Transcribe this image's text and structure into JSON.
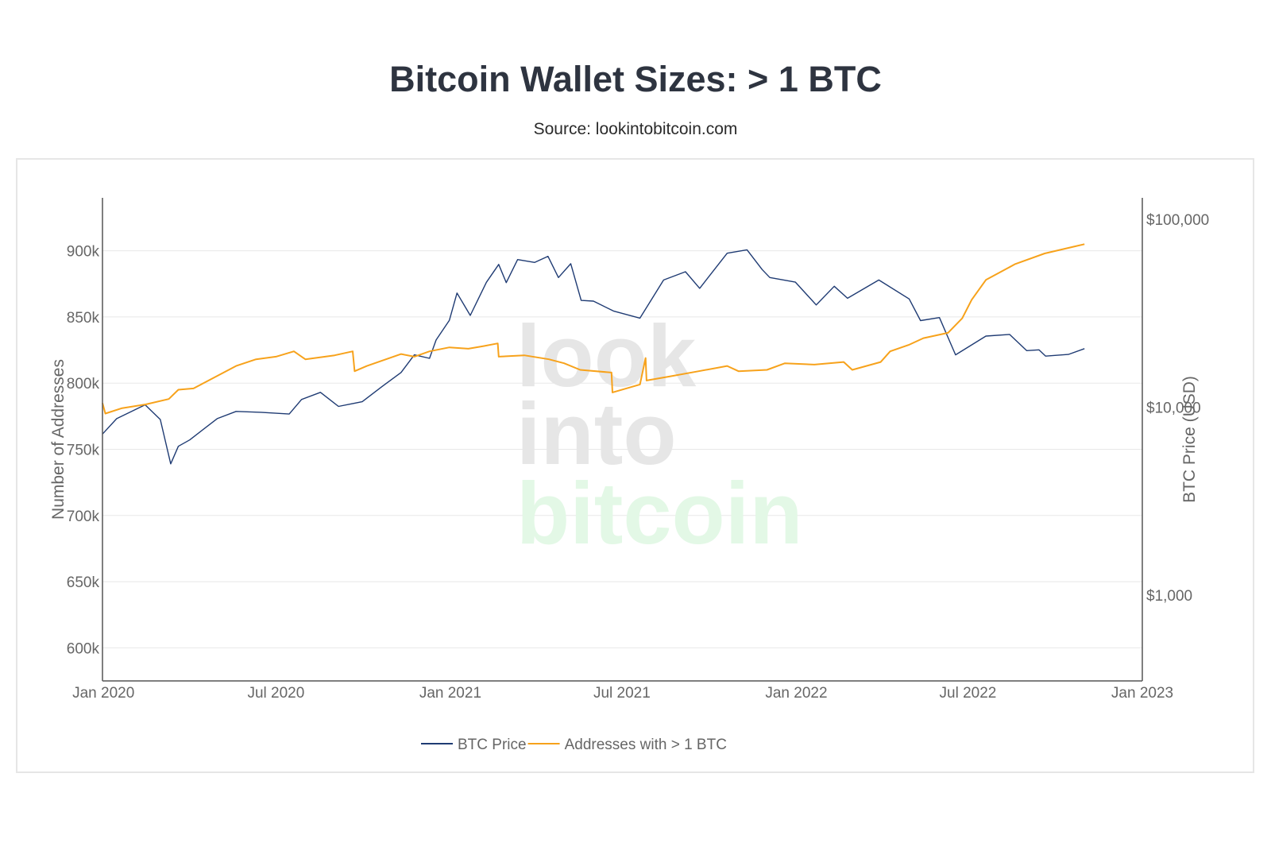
{
  "header": {
    "title": "Bitcoin Wallet Sizes: > 1 BTC",
    "subtitle": "Source: lookintobitcoin.com"
  },
  "watermark": {
    "line1": "look",
    "line2": "into",
    "line3": "bitcoin"
  },
  "colors": {
    "price": "#1f3b73",
    "addresses": "#f7a21b",
    "axis": "#555555",
    "grid": "#e8e8e8",
    "wm_gray": "#e6e6e6",
    "wm_green": "#e3f8e6"
  },
  "chart_data": {
    "type": "line",
    "title": "Bitcoin Wallet Sizes: > 1 BTC",
    "xlabel": "",
    "ylabel": "Number of Addresses",
    "y2label": "BTC Price (USD)",
    "xlim": [
      "2019-12-31",
      "2023-01-01"
    ],
    "ylim": [
      575000,
      940000
    ],
    "y2lim": [
      350,
      130000
    ],
    "y2_scale": "log",
    "x_ticks": [
      {
        "date": "2020-01-01",
        "label": "Jan 2020"
      },
      {
        "date": "2020-07-01",
        "label": "Jul 2020"
      },
      {
        "date": "2021-01-01",
        "label": "Jan 2021"
      },
      {
        "date": "2021-07-01",
        "label": "Jul 2021"
      },
      {
        "date": "2022-01-01",
        "label": "Jan 2022"
      },
      {
        "date": "2022-07-01",
        "label": "Jul 2022"
      },
      {
        "date": "2023-01-01",
        "label": "Jan 2023"
      }
    ],
    "y_ticks": [
      {
        "value": 600000,
        "label": "600k"
      },
      {
        "value": 650000,
        "label": "650k"
      },
      {
        "value": 700000,
        "label": "700k"
      },
      {
        "value": 750000,
        "label": "750k"
      },
      {
        "value": 800000,
        "label": "800k"
      },
      {
        "value": 850000,
        "label": "850k"
      },
      {
        "value": 900000,
        "label": "900k"
      }
    ],
    "y2_ticks": [
      {
        "value": 1000,
        "label": "$1,000"
      },
      {
        "value": 10000,
        "label": "$10,000"
      },
      {
        "value": 100000,
        "label": "$100,000"
      }
    ],
    "legend_position": "bottom-center",
    "grid": true,
    "series": [
      {
        "name": "BTC Price",
        "axis": "y2",
        "color": "#1f3b73",
        "points": [
          [
            "2019-12-31",
            7200
          ],
          [
            "2020-01-15",
            8700
          ],
          [
            "2020-02-14",
            10300
          ],
          [
            "2020-03-01",
            8600
          ],
          [
            "2020-03-12",
            5000
          ],
          [
            "2020-03-20",
            6200
          ],
          [
            "2020-04-01",
            6700
          ],
          [
            "2020-04-30",
            8700
          ],
          [
            "2020-05-20",
            9500
          ],
          [
            "2020-06-15",
            9400
          ],
          [
            "2020-07-15",
            9200
          ],
          [
            "2020-07-28",
            11000
          ],
          [
            "2020-08-17",
            12000
          ],
          [
            "2020-09-05",
            10100
          ],
          [
            "2020-09-30",
            10700
          ],
          [
            "2020-10-21",
            12900
          ],
          [
            "2020-11-10",
            15300
          ],
          [
            "2020-11-24",
            19000
          ],
          [
            "2020-12-10",
            18200
          ],
          [
            "2020-12-17",
            22800
          ],
          [
            "2020-12-31",
            29000
          ],
          [
            "2021-01-08",
            40500
          ],
          [
            "2021-01-22",
            30800
          ],
          [
            "2021-02-08",
            46200
          ],
          [
            "2021-02-21",
            57500
          ],
          [
            "2021-03-01",
            46000
          ],
          [
            "2021-03-13",
            61000
          ],
          [
            "2021-03-31",
            58900
          ],
          [
            "2021-04-14",
            63500
          ],
          [
            "2021-04-25",
            49000
          ],
          [
            "2021-05-08",
            58000
          ],
          [
            "2021-05-19",
            37000
          ],
          [
            "2021-06-01",
            36700
          ],
          [
            "2021-06-22",
            32500
          ],
          [
            "2021-07-20",
            29800
          ],
          [
            "2021-08-14",
            47500
          ],
          [
            "2021-09-06",
            52600
          ],
          [
            "2021-09-21",
            42900
          ],
          [
            "2021-10-20",
            66000
          ],
          [
            "2021-11-10",
            68800
          ],
          [
            "2021-11-26",
            54000
          ],
          [
            "2021-12-04",
            49000
          ],
          [
            "2021-12-31",
            46300
          ],
          [
            "2022-01-22",
            35000
          ],
          [
            "2022-02-10",
            44000
          ],
          [
            "2022-02-24",
            38000
          ],
          [
            "2022-03-29",
            47500
          ],
          [
            "2022-04-30",
            37700
          ],
          [
            "2022-05-12",
            28900
          ],
          [
            "2022-06-01",
            30000
          ],
          [
            "2022-06-18",
            19000
          ],
          [
            "2022-07-20",
            23900
          ],
          [
            "2022-08-14",
            24400
          ],
          [
            "2022-09-01",
            20000
          ],
          [
            "2022-09-14",
            20200
          ],
          [
            "2022-09-21",
            18700
          ],
          [
            "2022-10-15",
            19100
          ],
          [
            "2022-11-01",
            20500
          ]
        ]
      },
      {
        "name": "Addresses with > 1 BTC",
        "axis": "y",
        "color": "#f7a21b",
        "points": [
          [
            "2019-12-31",
            785000
          ],
          [
            "2020-01-03",
            777000
          ],
          [
            "2020-01-20",
            781000
          ],
          [
            "2020-02-15",
            784000
          ],
          [
            "2020-03-10",
            788000
          ],
          [
            "2020-03-20",
            795000
          ],
          [
            "2020-04-05",
            796000
          ],
          [
            "2020-05-20",
            813000
          ],
          [
            "2020-06-10",
            818000
          ],
          [
            "2020-07-01",
            820000
          ],
          [
            "2020-07-20",
            824000
          ],
          [
            "2020-08-01",
            818000
          ],
          [
            "2020-09-01",
            821000
          ],
          [
            "2020-09-20",
            824000
          ],
          [
            "2020-09-22",
            809000
          ],
          [
            "2020-10-05",
            813000
          ],
          [
            "2020-11-10",
            822000
          ],
          [
            "2020-11-24",
            820000
          ],
          [
            "2020-12-10",
            824000
          ],
          [
            "2020-12-31",
            827000
          ],
          [
            "2021-01-20",
            826000
          ],
          [
            "2021-02-05",
            828000
          ],
          [
            "2021-02-20",
            830000
          ],
          [
            "2021-02-21",
            820000
          ],
          [
            "2021-03-20",
            821000
          ],
          [
            "2021-04-15",
            818000
          ],
          [
            "2021-05-01",
            815000
          ],
          [
            "2021-05-18",
            810000
          ],
          [
            "2021-06-20",
            808000
          ],
          [
            "2021-06-21",
            793000
          ],
          [
            "2021-07-20",
            799000
          ],
          [
            "2021-07-26",
            819000
          ],
          [
            "2021-07-27",
            802000
          ],
          [
            "2021-08-20",
            805000
          ],
          [
            "2021-09-20",
            809000
          ],
          [
            "2021-10-20",
            813000
          ],
          [
            "2021-11-01",
            809000
          ],
          [
            "2021-12-01",
            810000
          ],
          [
            "2021-12-20",
            815000
          ],
          [
            "2022-01-20",
            814000
          ],
          [
            "2022-02-20",
            816000
          ],
          [
            "2022-03-01",
            810000
          ],
          [
            "2022-03-31",
            816000
          ],
          [
            "2022-04-10",
            824000
          ],
          [
            "2022-04-30",
            829000
          ],
          [
            "2022-05-15",
            834000
          ],
          [
            "2022-06-10",
            838000
          ],
          [
            "2022-06-25",
            849000
          ],
          [
            "2022-07-05",
            863000
          ],
          [
            "2022-07-20",
            878000
          ],
          [
            "2022-08-20",
            890000
          ],
          [
            "2022-09-20",
            898000
          ],
          [
            "2022-10-20",
            903000
          ],
          [
            "2022-11-01",
            905000
          ]
        ]
      }
    ]
  }
}
